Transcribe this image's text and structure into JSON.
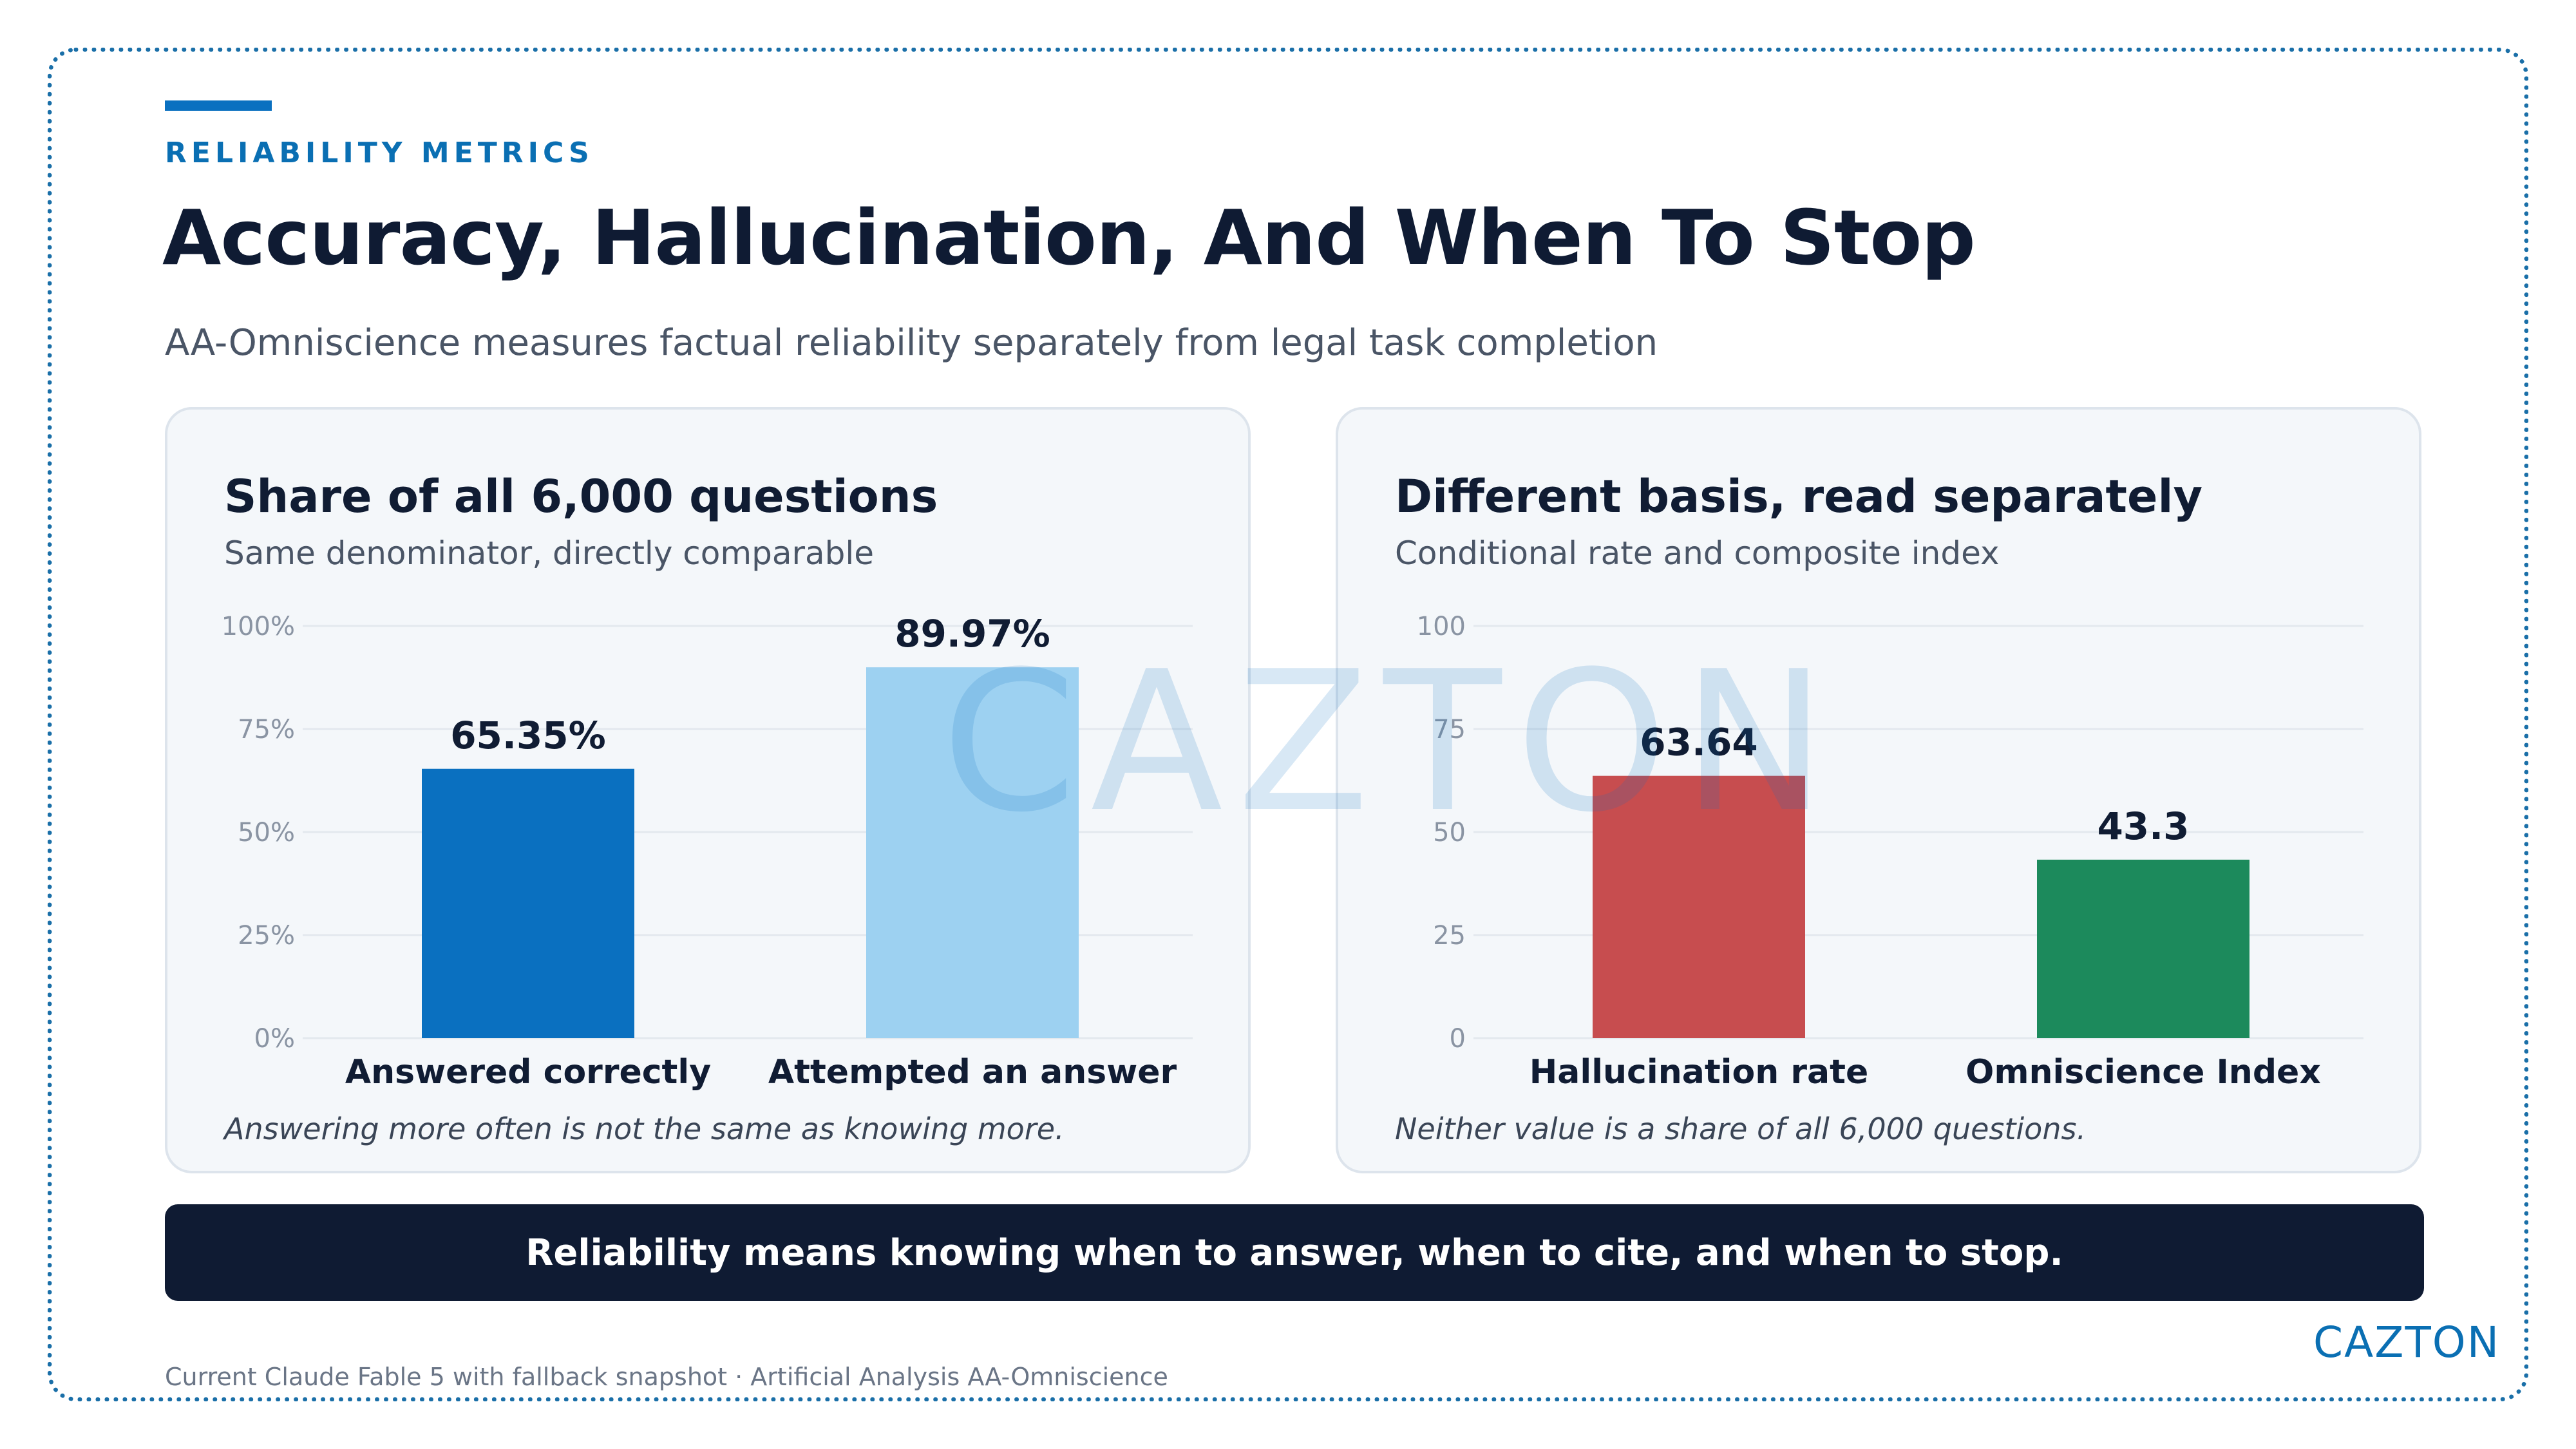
{
  "header": {
    "eyebrow": "RELIABILITY METRICS",
    "title": "Accuracy, Hallucination, And When To Stop",
    "subtitle": "AA-Omniscience measures factual reliability separately from legal task completion"
  },
  "panels": [
    {
      "title": "Share of all 6,000 questions",
      "subtitle": "Same denominator, directly comparable",
      "note": "Answering more often is not the same as knowing more."
    },
    {
      "title": "Different basis, read separately",
      "subtitle": "Conditional rate and composite index",
      "note": "Neither value is a share of all 6,000 questions."
    }
  ],
  "chart_data": [
    {
      "type": "bar",
      "categories": [
        "Answered correctly",
        "Attempted an answer"
      ],
      "values": [
        65.35,
        89.97
      ],
      "value_labels": [
        "65.35%",
        "89.97%"
      ],
      "colors": [
        "#0a70c0",
        "#9dd1f1"
      ],
      "ylim": [
        0,
        100
      ],
      "yticks": [
        0,
        25,
        50,
        75,
        100
      ],
      "ytick_labels": [
        "0%",
        "25%",
        "50%",
        "75%",
        "100%"
      ],
      "grid": true
    },
    {
      "type": "bar",
      "categories": [
        "Hallucination rate",
        "Omniscience Index"
      ],
      "values": [
        63.64,
        43.3
      ],
      "value_labels": [
        "63.64",
        "43.3"
      ],
      "colors": [
        "#c74d4f",
        "#1c8a5c"
      ],
      "ylim": [
        0,
        100
      ],
      "yticks": [
        0,
        25,
        50,
        75,
        100
      ],
      "ytick_labels": [
        "0",
        "25",
        "50",
        "75",
        "100"
      ],
      "grid": true
    }
  ],
  "watermark": "CAZTON",
  "banner": "Reliability means knowing when to answer, when to cite, and when to stop.",
  "footnote": "Current Claude Fable 5 with fallback snapshot · Artificial Analysis AA-Omniscience",
  "brand": "CAZTON"
}
